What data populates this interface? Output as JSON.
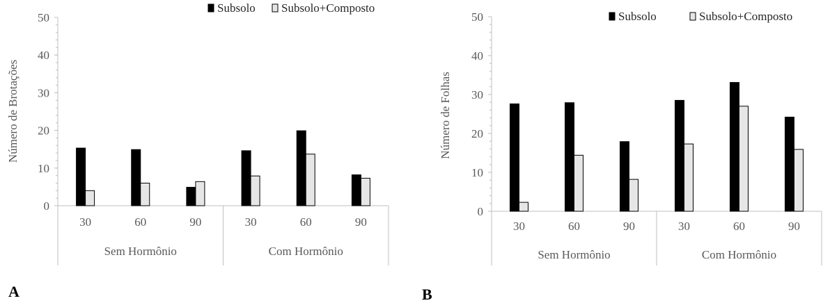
{
  "colors": {
    "subsolo": "#000000",
    "composto": "#e6e6e6",
    "axis": "#bfbfbf",
    "text": "#595959"
  },
  "chart_data": [
    {
      "panel_label": "A",
      "type": "bar",
      "ylabel": "Número de Brotações",
      "ylim": [
        0,
        50
      ],
      "yticks": [
        "0",
        "10",
        "20",
        "30",
        "40",
        "50"
      ],
      "groups": [
        "Sem Hormônio",
        "Com Hormônio"
      ],
      "categories": [
        "30",
        "60",
        "90",
        "30",
        "60",
        "90"
      ],
      "legend_position": "top-right",
      "series": [
        {
          "name": "Subsolo",
          "values": [
            15.3,
            14.9,
            4.9,
            14.6,
            19.9,
            8.2
          ]
        },
        {
          "name": "Subsolo+Composto",
          "values": [
            4.0,
            6.0,
            6.4,
            7.9,
            13.7,
            7.3
          ]
        }
      ]
    },
    {
      "panel_label": "B",
      "type": "bar",
      "ylabel": "Número de Folhas",
      "ylim": [
        0,
        50
      ],
      "yticks": [
        "0",
        "10",
        "20",
        "30",
        "40",
        "50"
      ],
      "groups": [
        "Sem Hormônio",
        "Com Hormônio"
      ],
      "categories": [
        "30",
        "60",
        "90",
        "30",
        "60",
        "90"
      ],
      "legend_position": "top-right",
      "series": [
        {
          "name": "Subsolo",
          "values": [
            27.6,
            27.9,
            17.9,
            28.5,
            33.1,
            24.2
          ]
        },
        {
          "name": "Subsolo+Composto",
          "values": [
            2.3,
            14.4,
            8.2,
            17.3,
            27.0,
            15.9
          ]
        }
      ]
    }
  ]
}
